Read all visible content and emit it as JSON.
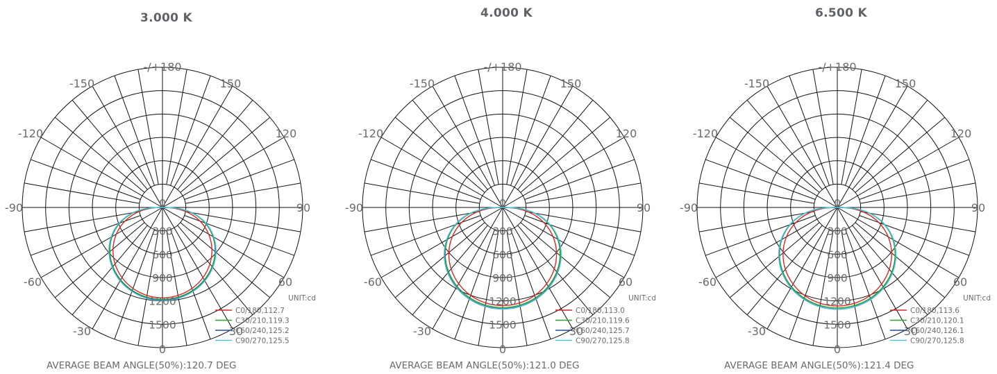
{
  "colors": {
    "C0/180": "#d62728",
    "C30/210": "#2ca02c",
    "C60/240": "#1f4fa3",
    "C90/270": "#4fc3d9"
  },
  "chart_data": [
    {
      "type": "polar",
      "title": "3.000 K",
      "unit": "UNIT:cd",
      "radial_ticks": [
        0,
        300,
        600,
        900,
        1200,
        1500
      ],
      "rmax": 1800,
      "angle_labels": [
        "-/+180",
        "150",
        "120",
        "90",
        "60",
        "30",
        "0",
        "-30",
        "-60",
        "-90",
        "-120",
        "-150"
      ],
      "legend": [
        "C0/180,112.7",
        "C30/210,119.3",
        "C60/240,125.2",
        "C90/270,125.5"
      ],
      "series": [
        {
          "name": "C0/180",
          "peak_cd": 1160,
          "beam_angle": 112.7
        },
        {
          "name": "C30/210",
          "peak_cd": 1180,
          "beam_angle": 119.3
        },
        {
          "name": "C60/240",
          "peak_cd": 1190,
          "beam_angle": 125.2
        },
        {
          "name": "C90/270",
          "peak_cd": 1195,
          "beam_angle": 125.5
        }
      ],
      "footer": "AVERAGE BEAM ANGLE(50%):120.7 DEG"
    },
    {
      "type": "polar",
      "title": "4.000 K",
      "unit": "UNIT:cd",
      "radial_ticks": [
        0,
        300,
        600,
        900,
        1200,
        1500
      ],
      "rmax": 1800,
      "angle_labels": [
        "-/+180",
        "150",
        "120",
        "90",
        "60",
        "30",
        "0",
        "-30",
        "-60",
        "-90",
        "-120",
        "-150"
      ],
      "legend": [
        "C0/180,113.0",
        "C30/210,119.6",
        "C60/240,125.7",
        "C90/270,125.8"
      ],
      "series": [
        {
          "name": "C0/180",
          "peak_cd": 1260,
          "beam_angle": 113.0
        },
        {
          "name": "C30/210",
          "peak_cd": 1285,
          "beam_angle": 119.6
        },
        {
          "name": "C60/240",
          "peak_cd": 1300,
          "beam_angle": 125.7
        },
        {
          "name": "C90/270",
          "peak_cd": 1305,
          "beam_angle": 125.8
        }
      ],
      "footer": "AVERAGE BEAM ANGLE(50%):121.0 DEG"
    },
    {
      "type": "polar",
      "title": "6.500 K",
      "unit": "UNIT:cd",
      "radial_ticks": [
        0,
        300,
        600,
        900,
        1200,
        1500
      ],
      "rmax": 1800,
      "angle_labels": [
        "-/+180",
        "150",
        "120",
        "90",
        "60",
        "30",
        "0",
        "-30",
        "-60",
        "-90",
        "-120",
        "-150"
      ],
      "legend": [
        "C0/180,113.6",
        "C30/210,120.1",
        "C60/240,126.1",
        "C90/270,125.8"
      ],
      "series": [
        {
          "name": "C0/180",
          "peak_cd": 1265,
          "beam_angle": 113.6
        },
        {
          "name": "C30/210",
          "peak_cd": 1290,
          "beam_angle": 120.1
        },
        {
          "name": "C60/240",
          "peak_cd": 1305,
          "beam_angle": 126.1
        },
        {
          "name": "C90/270",
          "peak_cd": 1308,
          "beam_angle": 125.8
        }
      ],
      "footer": "AVERAGE BEAM ANGLE(50%):121.4 DEG"
    }
  ]
}
